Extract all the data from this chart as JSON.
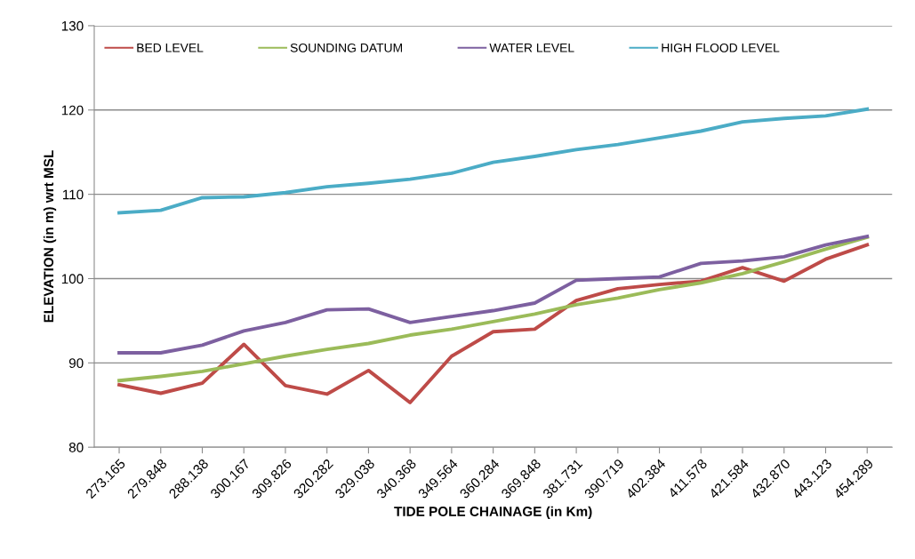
{
  "chart_data": {
    "type": "line",
    "xlabel": "TIDE POLE CHAINAGE (in Km)",
    "ylabel": "ELEVATION (in m) wrt MSL",
    "categories": [
      "273.165",
      "279.848",
      "288.138",
      "300.167",
      "309.826",
      "320.282",
      "329.038",
      "340.368",
      "349.564",
      "360.284",
      "369.848",
      "381.731",
      "390.719",
      "402.384",
      "411.578",
      "421.584",
      "432.870",
      "443.123",
      "454.289"
    ],
    "series": [
      {
        "name": "BED LEVEL",
        "color": "#be4b48",
        "values": [
          87.4,
          86.4,
          87.6,
          92.2,
          87.3,
          86.3,
          89.1,
          85.3,
          90.8,
          93.7,
          94.0,
          97.4,
          98.8,
          99.3,
          99.7,
          101.3,
          99.7,
          102.3,
          104.0
        ]
      },
      {
        "name": "SOUNDING DATUM",
        "color": "#9bbb59",
        "values": [
          87.9,
          88.4,
          89.0,
          89.9,
          90.8,
          91.6,
          92.3,
          93.3,
          94.0,
          94.9,
          95.8,
          96.9,
          97.7,
          98.7,
          99.5,
          100.6,
          102.0,
          103.5,
          104.9
        ]
      },
      {
        "name": "WATER LEVEL",
        "color": "#7d60a0",
        "values": [
          91.2,
          91.2,
          92.1,
          93.8,
          94.8,
          96.3,
          96.4,
          94.8,
          95.5,
          96.2,
          97.1,
          99.8,
          100.0,
          100.2,
          101.8,
          102.1,
          102.6,
          104.0,
          105.0
        ]
      },
      {
        "name": "HIGH FLOOD LEVEL",
        "color": "#4bacc6",
        "values": [
          107.8,
          108.1,
          109.6,
          109.7,
          110.2,
          110.9,
          111.3,
          111.8,
          112.5,
          113.8,
          114.5,
          115.3,
          115.9,
          116.7,
          117.5,
          118.6,
          119.0,
          119.3,
          120.1
        ]
      }
    ],
    "ylim": [
      80,
      130
    ],
    "yticks": [
      80,
      90,
      100,
      110,
      120,
      130
    ],
    "grid": "y",
    "legend": "top left",
    "marker": "none",
    "line_style": "solid"
  }
}
